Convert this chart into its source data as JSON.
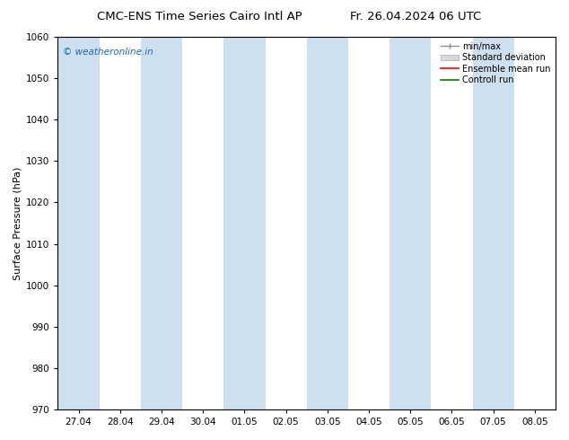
{
  "title": "CMC-ENS Time Series Cairo Intl AP",
  "title_right": "Fr. 26.04.2024 06 UTC",
  "ylabel": "Surface Pressure (hPa)",
  "ymin": 970,
  "ymax": 1060,
  "ytick_step": 10,
  "watermark": "© weatheronline.in",
  "watermark_color": "#1a6bb5",
  "x_labels": [
    "27.04",
    "28.04",
    "29.04",
    "30.04",
    "01.05",
    "02.05",
    "03.05",
    "04.05",
    "05.05",
    "06.05",
    "07.05",
    "08.05"
  ],
  "shaded_band_color": "#cce0f0",
  "shaded_bands_indices": [
    0,
    2,
    4,
    6,
    8,
    10
  ],
  "legend_items": [
    {
      "label": "min/max",
      "color": "#a0a0a0",
      "style": "line_with_caps"
    },
    {
      "label": "Standard deviation",
      "color": "#c8c8c8",
      "style": "filled"
    },
    {
      "label": "Ensemble mean run",
      "color": "red",
      "style": "line"
    },
    {
      "label": "Controll run",
      "color": "green",
      "style": "line"
    }
  ],
  "background_color": "#ffffff",
  "plot_bg_color": "#ffffff",
  "border_color": "#000000",
  "tick_color": "#000000",
  "title_fontsize": 9.5,
  "axis_label_fontsize": 8,
  "tick_fontsize": 7.5,
  "legend_fontsize": 7
}
